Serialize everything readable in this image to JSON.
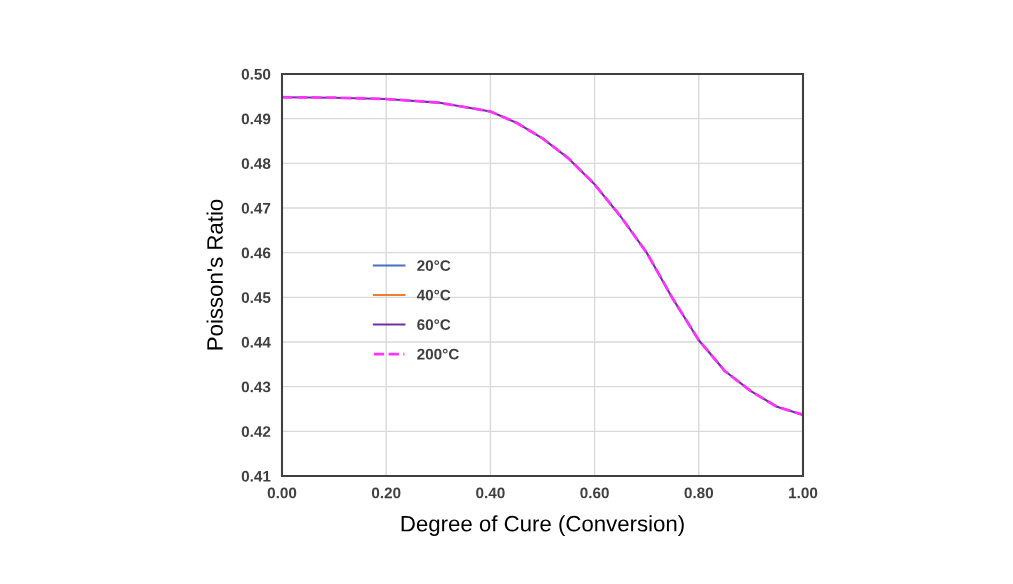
{
  "chart_data": {
    "type": "line",
    "xlabel": "Degree of Cure (Conversion)",
    "ylabel": "Poisson's Ratio",
    "x": [
      0,
      0.1,
      0.2,
      0.3,
      0.4,
      0.45,
      0.5,
      0.55,
      0.6,
      0.65,
      0.7,
      0.75,
      0.8,
      0.85,
      0.9,
      0.95,
      1.0
    ],
    "series": [
      {
        "name": "20°C",
        "color": "#4472c4",
        "line_style": "solid",
        "values": [
          null,
          null,
          null,
          null,
          null,
          null,
          null,
          null,
          null,
          null,
          null,
          null,
          null,
          null,
          null,
          null,
          null
        ]
      },
      {
        "name": "40°C",
        "color": "#ed7d31",
        "line_style": "solid",
        "values": [
          null,
          null,
          null,
          null,
          null,
          null,
          null,
          null,
          null,
          null,
          null,
          null,
          null,
          null,
          null,
          null,
          null
        ]
      },
      {
        "name": "60°C",
        "color": "#7030a0",
        "line_style": "solid",
        "values": [
          0.4948,
          0.4947,
          0.4944,
          0.4936,
          0.4916,
          0.4891,
          0.4856,
          0.4811,
          0.4753,
          0.4681,
          0.46,
          0.4497,
          0.4404,
          0.4335,
          0.429,
          0.4255,
          0.4237
        ]
      },
      {
        "name": "200°C",
        "color": "#ff33ff",
        "line_style": "dashed",
        "values": [
          0.4948,
          0.4947,
          0.4944,
          0.4936,
          0.4916,
          0.4891,
          0.4856,
          0.4811,
          0.4753,
          0.4681,
          0.46,
          0.4497,
          0.4404,
          0.4335,
          0.429,
          0.4255,
          0.4237
        ]
      }
    ],
    "xlim": [
      0,
      1
    ],
    "xticks": [
      {
        "value": 0,
        "label": "0.00"
      },
      {
        "value": 0.2,
        "label": "0.20"
      },
      {
        "value": 0.4,
        "label": "0.40"
      },
      {
        "value": 0.6,
        "label": "0.60"
      },
      {
        "value": 0.8,
        "label": "0.80"
      },
      {
        "value": 1,
        "label": "1.00"
      }
    ],
    "ylim": [
      0.41,
      0.5
    ],
    "yticks": [
      0.41,
      0.42,
      0.43,
      0.44,
      0.45,
      0.46,
      0.47,
      0.48,
      0.49,
      {
        "value": 0.5,
        "label": "0.50"
      }
    ],
    "grid": true,
    "legend": "left",
    "marker": "none"
  }
}
